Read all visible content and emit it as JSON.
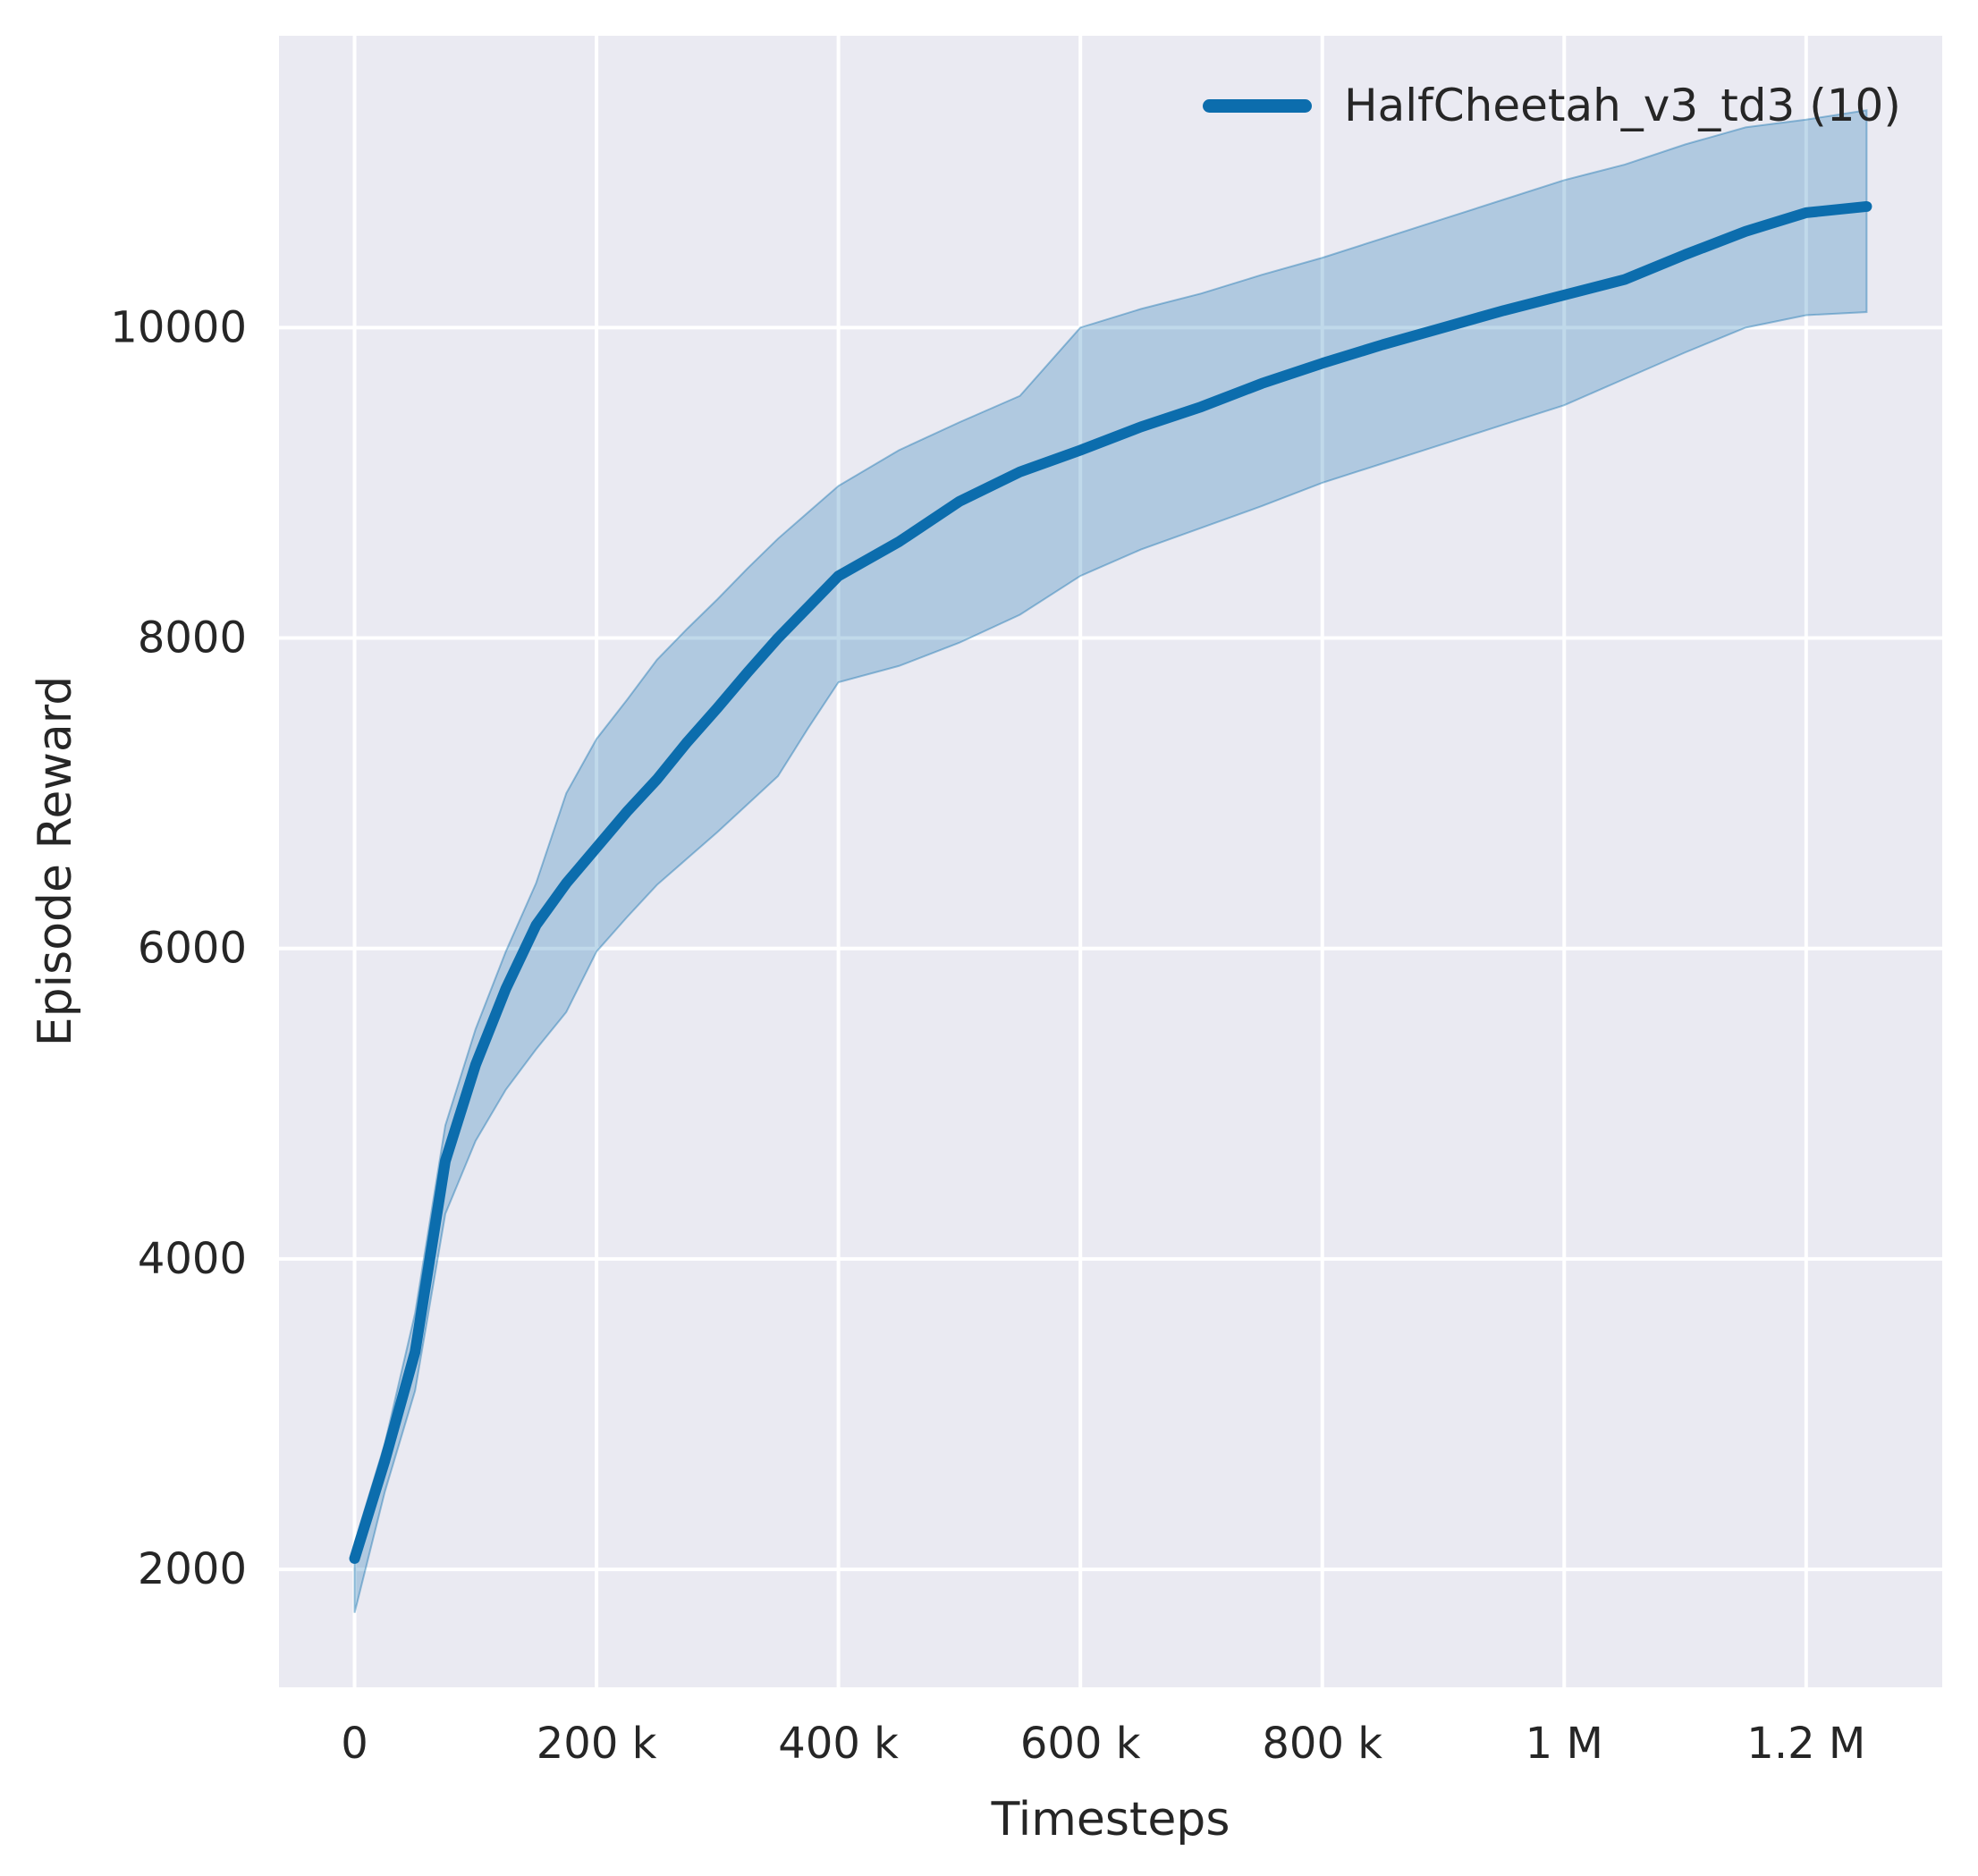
{
  "chart_data": {
    "type": "line",
    "title": "",
    "xlabel": "Timesteps",
    "ylabel": "Episode Reward",
    "xlim": [
      -62500,
      1312500
    ],
    "ylim": [
      1240,
      11880
    ],
    "grid": true,
    "legend_position": "upper right",
    "x_ticks": {
      "values": [
        0,
        200000,
        400000,
        600000,
        800000,
        1000000,
        1200000
      ],
      "labels": [
        "0",
        "200 k",
        "400 k",
        "600 k",
        "800 k",
        "1 M",
        "1.2 M"
      ]
    },
    "y_ticks": {
      "values": [
        2000,
        4000,
        6000,
        8000,
        10000
      ],
      "labels": [
        "2000",
        "4000",
        "6000",
        "8000",
        "10000"
      ]
    },
    "colors": {
      "axes_background": "#eaeaf2",
      "grid": "#ffffff",
      "text": "#262626",
      "line": "#0c6dad"
    },
    "band_opacity": 0.26,
    "series": [
      {
        "name": "HalfCheetah_v3_td3 (10)",
        "color": "#0c6dad",
        "x": [
          0,
          25000,
          50000,
          75000,
          100000,
          125000,
          150000,
          175000,
          200000,
          225000,
          250000,
          275000,
          300000,
          325000,
          350000,
          375000,
          400000,
          450000,
          500000,
          550000,
          600000,
          650000,
          700000,
          750000,
          800000,
          850000,
          900000,
          950000,
          1000000,
          1050000,
          1100000,
          1150000,
          1200000,
          1250000
        ],
        "mean": [
          2070,
          2700,
          3400,
          4630,
          5250,
          5740,
          6150,
          6420,
          6650,
          6880,
          7090,
          7330,
          7550,
          7780,
          8000,
          8200,
          8400,
          8620,
          8880,
          9070,
          9210,
          9360,
          9490,
          9640,
          9770,
          9890,
          10000,
          10110,
          10210,
          10310,
          10470,
          10620,
          10740,
          10780
        ],
        "lo": [
          1720,
          2500,
          3150,
          4290,
          4760,
          5090,
          5350,
          5590,
          5980,
          6200,
          6410,
          6580,
          6750,
          6930,
          7110,
          7420,
          7715,
          7820,
          7970,
          8150,
          8400,
          8570,
          8710,
          8850,
          9000,
          9125,
          9250,
          9375,
          9500,
          9670,
          9840,
          10000,
          10080,
          10100
        ],
        "hi": [
          2170,
          2810,
          3650,
          4860,
          5480,
          5980,
          6420,
          7000,
          7350,
          7600,
          7860,
          8060,
          8250,
          8450,
          8640,
          8810,
          8980,
          9210,
          9390,
          9560,
          10000,
          10120,
          10220,
          10340,
          10450,
          10575,
          10700,
          10825,
          10950,
          11050,
          11180,
          11290,
          11340,
          11400
        ]
      }
    ]
  }
}
